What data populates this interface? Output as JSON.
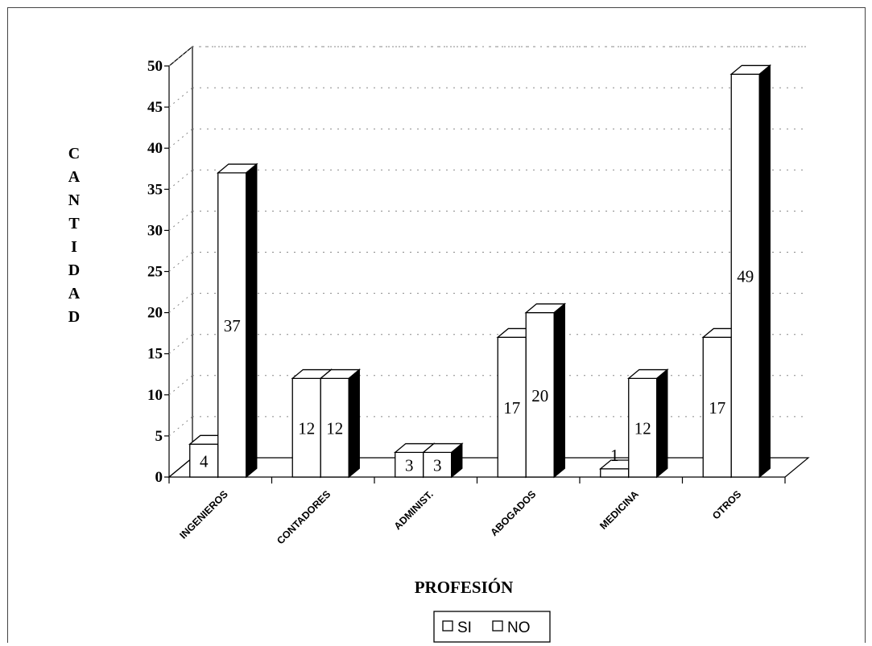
{
  "chart_data": {
    "type": "bar",
    "categories": [
      "INGENIEROS",
      "CONTADORES",
      "ADMINIST.",
      "ABOGADOS",
      "MEDICINA",
      "OTROS"
    ],
    "series": [
      {
        "name": "SI",
        "values": [
          4,
          12,
          3,
          17,
          1,
          17
        ]
      },
      {
        "name": "NO",
        "values": [
          37,
          12,
          3,
          20,
          12,
          49
        ]
      }
    ],
    "title": "",
    "xlabel": "PROFESIÓN",
    "ylabel": "CANTIDAD",
    "ylim": [
      0,
      50
    ],
    "yticks": [
      "0",
      "5",
      "10",
      "15",
      "20",
      "25",
      "30",
      "35",
      "40",
      "45",
      "50"
    ],
    "grid": true,
    "legend": "bottom-center",
    "colors": {
      "face": "#ffffff",
      "side": "#000000",
      "top": "#ffffff",
      "outline": "#000000"
    }
  }
}
